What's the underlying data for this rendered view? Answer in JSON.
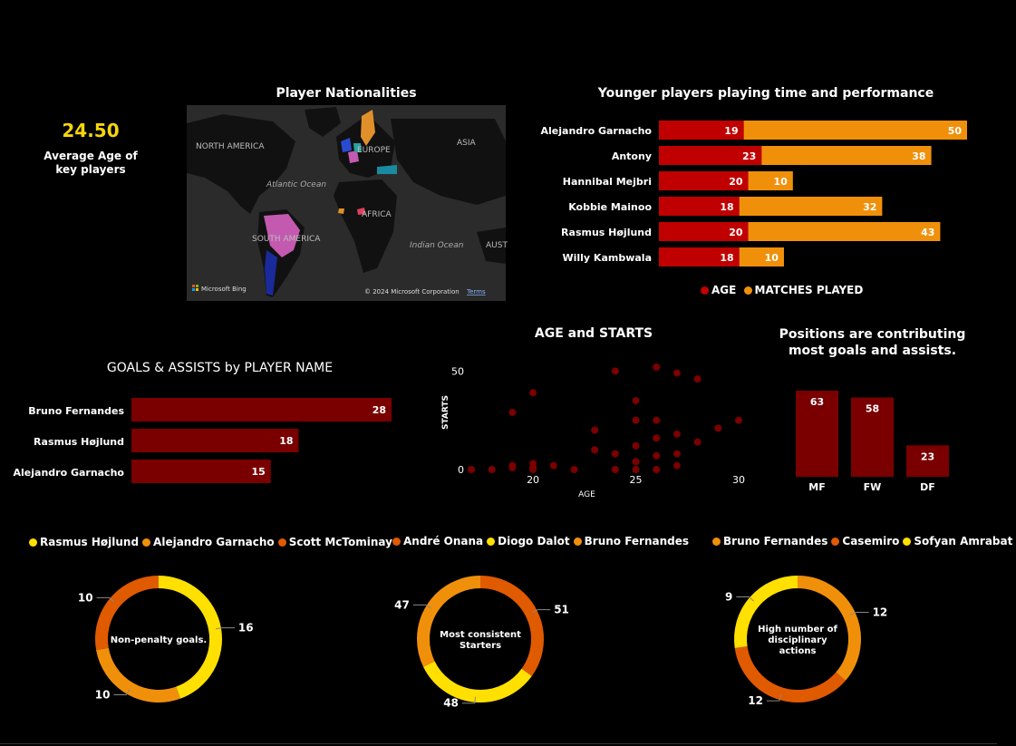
{
  "kpi": {
    "value": "24.50",
    "label": "Average Age of key players"
  },
  "map": {
    "title": "Player Nationalities",
    "labels": {
      "north_america": "NORTH AMERICA",
      "europe": "EUROPE",
      "asia": "ASIA",
      "atlantic": "Atlantic Ocean",
      "africa": "AFRICA",
      "south_america": "SOUTH AMERICA",
      "indian": "Indian Ocean",
      "australia": "AUST"
    },
    "provider": "Microsoft Bing",
    "copyright": "© 2024 Microsoft Corporation",
    "terms": "Terms"
  },
  "colors": {
    "background": "#000000",
    "age": "#c00000",
    "matches": "#f0900a",
    "dark_red": "#7a0000",
    "yellow": "#ffe000",
    "orange": "#f0900a",
    "red_orange": "#e05a00",
    "kpi": "#f5d60a"
  },
  "younger_players": {
    "title": "Younger players playing time and performance",
    "legend": [
      "AGE",
      "MATCHES PLAYED"
    ]
  },
  "goals_assists": {
    "title": "GOALS & ASSISTS by PLAYER NAME"
  },
  "age_starts": {
    "title": "AGE and STARTS",
    "xlabel": "AGE",
    "ylabel": "STARTS"
  },
  "positions": {
    "title": "Positions are contributing most goals and assists."
  },
  "donut1": {
    "legend": [
      "Rasmus Højlund",
      "Alejandro Garnacho",
      "Scott McTominay"
    ],
    "center": "Non-penalty goals."
  },
  "donut2": {
    "legend": [
      "André Onana",
      "Diogo Dalot",
      "Bruno Fernandes"
    ],
    "center": "Most consistent Starters"
  },
  "donut3": {
    "legend": [
      "Bruno Fernandes",
      "Casemiro",
      "Sofyan Amrabat"
    ],
    "center": "High number of disciplinary actions"
  },
  "chart_data": [
    {
      "id": "younger_players",
      "type": "bar",
      "orientation": "horizontal",
      "stacked": true,
      "title": "Younger players playing time and performance",
      "categories": [
        "Alejandro Garnacho",
        "Antony",
        "Hannibal Mejbri",
        "Kobbie Mainoo",
        "Rasmus Højlund",
        "Willy Kambwala"
      ],
      "series": [
        {
          "name": "AGE",
          "values": [
            19,
            23,
            20,
            18,
            20,
            18
          ]
        },
        {
          "name": "MATCHES PLAYED",
          "values": [
            50,
            38,
            10,
            32,
            43,
            10
          ]
        }
      ],
      "legend_position": "bottom"
    },
    {
      "id": "goals_assists",
      "type": "bar",
      "orientation": "horizontal",
      "title": "GOALS & ASSISTS by PLAYER NAME",
      "categories": [
        "Bruno Fernandes",
        "Rasmus Højlund",
        "Alejandro Garnacho"
      ],
      "values": [
        28,
        18,
        15
      ]
    },
    {
      "id": "age_starts",
      "type": "scatter",
      "title": "AGE and STARTS",
      "xlabel": "AGE",
      "ylabel": "STARTS",
      "xlim": [
        17,
        30
      ],
      "ylim": [
        0,
        52
      ],
      "xticks": [
        20,
        25,
        30
      ],
      "yticks": [
        0,
        50
      ],
      "points": [
        [
          17,
          0
        ],
        [
          18,
          0
        ],
        [
          19,
          1
        ],
        [
          19,
          2
        ],
        [
          20,
          0
        ],
        [
          20,
          1
        ],
        [
          20,
          3
        ],
        [
          21,
          2
        ],
        [
          19,
          29
        ],
        [
          20,
          39
        ],
        [
          22,
          0
        ],
        [
          23,
          10
        ],
        [
          23,
          20
        ],
        [
          24,
          0
        ],
        [
          24,
          8
        ],
        [
          25,
          0
        ],
        [
          25,
          4
        ],
        [
          25,
          12
        ],
        [
          25,
          25
        ],
        [
          25,
          35
        ],
        [
          26,
          0
        ],
        [
          26,
          7
        ],
        [
          26,
          16
        ],
        [
          26,
          25
        ],
        [
          27,
          2
        ],
        [
          27,
          8
        ],
        [
          27,
          18
        ],
        [
          28,
          14
        ],
        [
          28,
          46
        ],
        [
          29,
          21
        ],
        [
          30,
          25
        ],
        [
          24,
          50
        ],
        [
          26,
          52
        ],
        [
          27,
          49
        ]
      ]
    },
    {
      "id": "positions",
      "type": "bar",
      "orientation": "vertical",
      "title": "Positions are contributing most goals and assists.",
      "categories": [
        "MF",
        "FW",
        "DF"
      ],
      "values": [
        63,
        58,
        23
      ]
    },
    {
      "id": "donut1",
      "type": "pie",
      "donut": true,
      "labels": [
        "Rasmus Højlund",
        "Alejandro Garnacho",
        "Scott McTominay"
      ],
      "values": [
        16,
        10,
        10
      ]
    },
    {
      "id": "donut2",
      "type": "pie",
      "donut": true,
      "labels": [
        "André Onana",
        "Diogo Dalot",
        "Bruno Fernandes"
      ],
      "values": [
        51,
        48,
        47
      ]
    },
    {
      "id": "donut3",
      "type": "pie",
      "donut": true,
      "labels": [
        "Bruno Fernandes",
        "Casemiro",
        "Sofyan Amrabat"
      ],
      "values": [
        12,
        12,
        9
      ]
    }
  ]
}
